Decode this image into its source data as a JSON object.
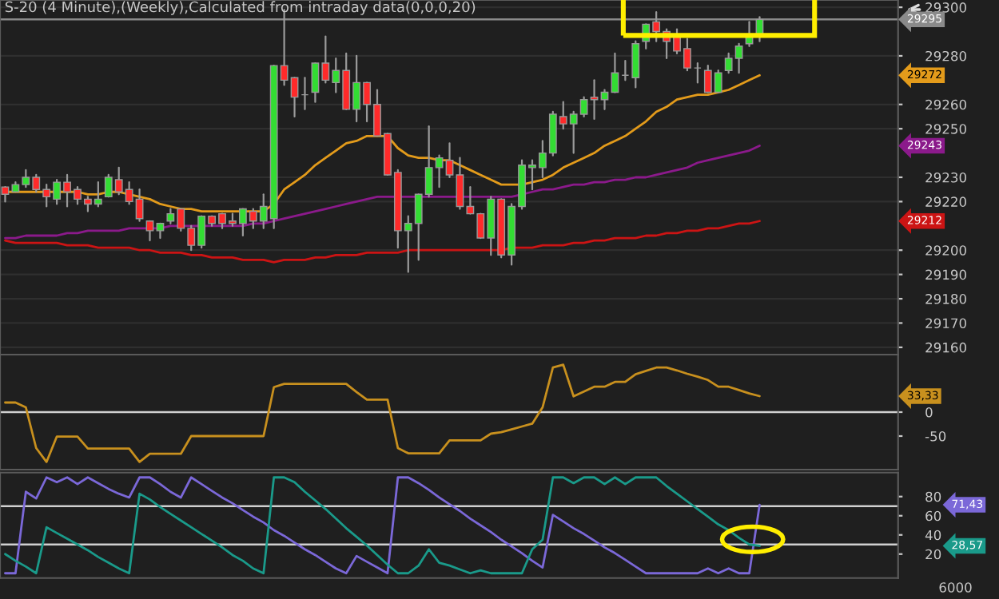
{
  "chart_data": [
    {
      "type": "candlestick",
      "title": "S-20 (4 Minute),(Weekly),Calculated from intraday data(0,0,0,20)",
      "categories": [
        null,
        null,
        null,
        null,
        null,
        null,
        null,
        null,
        null,
        null,
        null,
        null,
        null,
        null,
        null,
        null,
        null,
        null,
        null,
        null,
        null,
        null,
        null,
        null,
        null,
        null,
        null,
        null,
        null,
        null,
        null,
        null,
        null,
        null,
        null,
        null,
        null,
        null,
        null,
        null,
        null,
        null,
        null,
        null,
        null,
        null,
        null,
        null,
        null,
        null,
        null,
        null,
        null,
        null,
        null,
        null,
        null,
        null,
        null,
        null,
        null,
        null,
        null,
        null,
        null,
        null,
        null,
        null,
        null,
        null,
        null,
        null,
        null,
        null
      ],
      "ohlc": [
        [
          29226,
          29226,
          29220,
          29223
        ],
        [
          29224,
          29228,
          29224,
          29227
        ],
        [
          29227,
          29233,
          29226,
          29230
        ],
        [
          29230,
          29231,
          29224,
          29225
        ],
        [
          29225,
          29227,
          29218,
          29222
        ],
        [
          29221,
          29229,
          29219,
          29228
        ],
        [
          29228,
          29231,
          29218,
          29224
        ],
        [
          29225,
          29226,
          29219,
          29221
        ],
        [
          29221,
          29222,
          29216,
          29219
        ],
        [
          29219,
          29228,
          29218,
          29221
        ],
        [
          29222,
          29231,
          29222,
          29230
        ],
        [
          29229,
          29234,
          29223,
          29224
        ],
        [
          29225,
          29228,
          29219,
          29220
        ],
        [
          29221,
          29225,
          29212,
          29213
        ],
        [
          29212,
          29212,
          29204,
          29208
        ],
        [
          29208,
          29211,
          29205,
          29211
        ],
        [
          29212,
          29217,
          29211,
          29215
        ],
        [
          29217,
          29217,
          29208,
          29209
        ],
        [
          29209,
          29210,
          29200,
          29202
        ],
        [
          29202,
          29214,
          29201,
          29214
        ],
        [
          29214,
          29214,
          29210,
          29211
        ],
        [
          29215,
          29215,
          29209,
          29211
        ],
        [
          29212,
          29215,
          29210,
          29211
        ],
        [
          29211,
          29217,
          29206,
          29217
        ],
        [
          29216,
          29217,
          29209,
          29212
        ],
        [
          29212,
          29223,
          29209,
          29218
        ],
        [
          29213,
          29276,
          29209,
          29276
        ],
        [
          29276,
          29299,
          29268,
          29270
        ],
        [
          29271,
          29271,
          29255,
          29263
        ],
        [
          29264,
          29271,
          29258,
          29264
        ],
        [
          29265,
          29277,
          29261,
          29277
        ],
        [
          29277,
          29288,
          29269,
          29270
        ],
        [
          29269,
          29279,
          29265,
          29274
        ],
        [
          29274,
          29281,
          29258,
          29258
        ],
        [
          29258,
          29280,
          29253,
          29269
        ],
        [
          29269,
          29269,
          29253,
          29260
        ],
        [
          29260,
          29266,
          29247,
          29247
        ],
        [
          29248,
          29248,
          29231,
          29231
        ],
        [
          29232,
          29233,
          29201,
          29208
        ],
        [
          29208,
          29214,
          29191,
          29211
        ],
        [
          29211,
          29223,
          29196,
          29223
        ],
        [
          29223,
          29251,
          29222,
          29234
        ],
        [
          29234,
          29239,
          29226,
          29238
        ],
        [
          29237,
          29244,
          29230,
          29231
        ],
        [
          29231,
          29238,
          29217,
          29218
        ],
        [
          29218,
          29226,
          29215,
          29215
        ],
        [
          29215,
          29215,
          29205,
          29205
        ],
        [
          29205,
          29222,
          29198,
          29221
        ],
        [
          29221,
          29221,
          29197,
          29198
        ],
        [
          29198,
          29219,
          29194,
          29218
        ],
        [
          29218,
          29237,
          29217,
          29235
        ],
        [
          29234,
          29237,
          29225,
          29235
        ],
        [
          29234,
          29245,
          29230,
          29240
        ],
        [
          29240,
          29257,
          29239,
          29256
        ],
        [
          29255,
          29261,
          29250,
          29252
        ],
        [
          29252,
          29257,
          29240,
          29256
        ],
        [
          29256,
          29263,
          29255,
          29262
        ],
        [
          29263,
          29270,
          29254,
          29262
        ],
        [
          29262,
          29266,
          29258,
          29265
        ],
        [
          29265,
          29281,
          29265,
          29273
        ],
        [
          29272,
          29278,
          29270,
          29272
        ],
        [
          29271,
          29286,
          29267,
          29285
        ],
        [
          29286,
          29293,
          29283,
          29293
        ],
        [
          29294,
          29298,
          29286,
          29290
        ],
        [
          29290,
          29291,
          29279,
          29286
        ],
        [
          29288,
          29291,
          29281,
          29282
        ],
        [
          29283,
          29287,
          29274,
          29275
        ],
        [
          29275,
          29277,
          29269,
          29275
        ],
        [
          29274,
          29276,
          29265,
          29265
        ],
        [
          29265,
          29274,
          29265,
          29273
        ],
        [
          29274,
          29281,
          29273,
          29279
        ],
        [
          29279,
          29285,
          29273,
          29284
        ],
        [
          29285,
          29294,
          29284,
          29288
        ],
        [
          29288,
          29296,
          29286,
          29295
        ]
      ],
      "series": [
        {
          "type": "line",
          "color": "#e39b1b",
          "values": [
            29224,
            29224,
            29224,
            29224,
            29224,
            29224,
            29224,
            29224,
            29223,
            29223,
            29224,
            29224,
            29223,
            29222,
            29221,
            29219,
            29218,
            29217,
            29217,
            29216,
            29216,
            29216,
            29216,
            29216,
            29216,
            29216,
            29219,
            29225,
            29228,
            29231,
            29235,
            29238,
            29241,
            29244,
            29245,
            29247,
            29247,
            29247,
            29242,
            29239,
            29238,
            29238,
            29237,
            29237,
            29235,
            29233,
            29231,
            29229,
            29227,
            29227,
            29227,
            29228,
            29229,
            29231,
            29234,
            29236,
            29238,
            29240,
            29243,
            29245,
            29247,
            29250,
            29253,
            29257,
            29259,
            29262,
            29263,
            29264,
            29264,
            29265,
            29266,
            29268,
            29270,
            29272
          ],
          "value_labels": [
            null,
            null,
            null,
            null,
            null,
            null,
            null,
            null,
            null,
            null,
            null,
            null,
            null,
            null,
            null,
            null,
            null,
            null,
            null,
            null,
            null,
            null,
            null,
            null,
            null,
            null,
            null,
            null,
            null,
            null,
            null,
            null,
            null,
            null,
            null,
            null,
            null,
            null,
            null,
            null,
            null,
            null,
            null,
            null,
            null,
            null,
            null,
            null,
            null,
            null,
            null,
            null,
            null,
            null,
            null,
            null,
            null,
            null,
            null,
            null,
            null,
            null,
            null,
            null,
            null,
            null,
            null,
            null,
            null,
            null,
            null,
            null,
            null,
            null
          ]
        },
        {
          "type": "line",
          "color": "#8b1a8b",
          "values": [
            29205,
            29205,
            29206,
            29206,
            29206,
            29206,
            29207,
            29207,
            29208,
            29208,
            29208,
            29208,
            29209,
            29209,
            29209,
            29209,
            29210,
            29210,
            29210,
            29210,
            29210,
            29210,
            29210,
            29210,
            29211,
            29211,
            29212,
            29213,
            29214,
            29215,
            29216,
            29217,
            29218,
            29219,
            29220,
            29221,
            29222,
            29222,
            29222,
            29222,
            29222,
            29222,
            29222,
            29222,
            29222,
            29222,
            29222,
            29222,
            29222,
            29222,
            29223,
            29224,
            29225,
            29225,
            29226,
            29227,
            29227,
            29228,
            29228,
            29229,
            29229,
            29230,
            29230,
            29231,
            29232,
            29233,
            29234,
            29236,
            29237,
            29238,
            29239,
            29240,
            29241,
            29243
          ],
          "value_labels": [
            null,
            null,
            null,
            null,
            null,
            null,
            null,
            null,
            null,
            null,
            null,
            null,
            null,
            null,
            null,
            null,
            null,
            null,
            null,
            null,
            null,
            null,
            null,
            null,
            null,
            null,
            null,
            null,
            null,
            null,
            null,
            null,
            null,
            null,
            null,
            null,
            null,
            null,
            null,
            null,
            null,
            null,
            null,
            null,
            null,
            null,
            null,
            null,
            null,
            null,
            null,
            null,
            null,
            null,
            null,
            null,
            null,
            null,
            null,
            null,
            null,
            null,
            null,
            null,
            null,
            null,
            null,
            null,
            null,
            null,
            null,
            null,
            null,
            null
          ]
        },
        {
          "type": "line",
          "color": "#cc1414",
          "values": [
            29204,
            29203,
            29203,
            29203,
            29203,
            29203,
            29202,
            29202,
            29202,
            29201,
            29201,
            29201,
            29201,
            29200,
            29200,
            29199,
            29199,
            29199,
            29198,
            29198,
            29197,
            29197,
            29197,
            29196,
            29196,
            29196,
            29195,
            29196,
            29196,
            29196,
            29197,
            29197,
            29198,
            29198,
            29198,
            29199,
            29199,
            29199,
            29199,
            29200,
            29200,
            29200,
            29200,
            29200,
            29200,
            29200,
            29200,
            29200,
            29200,
            29201,
            29201,
            29201,
            29202,
            29202,
            29202,
            29203,
            29203,
            29204,
            29204,
            29205,
            29205,
            29205,
            29206,
            29206,
            29207,
            29207,
            29208,
            29208,
            29209,
            29209,
            29210,
            29211,
            29211,
            29212
          ],
          "value_labels": [
            null,
            null,
            null,
            null,
            null,
            null,
            null,
            null,
            null,
            null,
            null,
            null,
            null,
            null,
            null,
            null,
            null,
            null,
            null,
            null,
            null,
            null,
            null,
            null,
            null,
            null,
            null,
            null,
            null,
            null,
            null,
            null,
            null,
            null,
            null,
            null,
            null,
            null,
            null,
            null,
            null,
            null,
            null,
            null,
            null,
            null,
            null,
            null,
            null,
            null,
            null,
            null,
            null,
            null,
            null,
            null,
            null,
            null,
            null,
            null,
            null,
            null,
            null,
            null,
            null,
            null,
            null,
            null,
            null,
            null,
            null,
            null,
            null,
            null
          ]
        }
      ],
      "ylim": [
        29157,
        29303
      ],
      "yticks": [
        29160,
        29170,
        29180,
        29190,
        29200,
        29220,
        29230,
        29250,
        29260,
        29280,
        29300
      ],
      "ref_lines": [
        {
          "axis": "y",
          "value": 29295,
          "label": "29295",
          "color": "#8a8a8a"
        }
      ],
      "annotations": [
        "29272",
        "29243",
        "29212"
      ],
      "grid": "y",
      "tick_labels": "y"
    },
    {
      "type": "line",
      "categories": [
        null,
        null,
        null,
        null,
        null,
        null,
        null,
        null,
        null,
        null,
        null,
        null,
        null,
        null,
        null,
        null,
        null,
        null,
        null,
        null,
        null,
        null,
        null,
        null,
        null,
        null,
        null,
        null,
        null,
        null,
        null,
        null,
        null,
        null,
        null,
        null,
        null,
        null,
        null,
        null,
        null,
        null,
        null,
        null,
        null,
        null,
        null,
        null,
        null,
        null,
        null,
        null,
        null,
        null,
        null,
        null,
        null,
        null,
        null,
        null,
        null,
        null,
        null,
        null,
        null,
        null,
        null,
        null,
        null,
        null,
        null,
        null,
        null,
        null
      ],
      "series": [
        {
          "color": "#c8901e",
          "values": [
            20,
            20,
            10,
            -75,
            -104,
            -51,
            -51,
            -51,
            -76,
            -76,
            -76,
            -76,
            -76,
            -104,
            -87,
            -87,
            -87,
            -87,
            -50,
            -50,
            -50,
            -50,
            -50,
            -50,
            -50,
            -50,
            52,
            59,
            59,
            59,
            59,
            59,
            59,
            59,
            42,
            26,
            26,
            26,
            -75,
            -86,
            -86,
            -86,
            -86,
            -59,
            -59,
            -59,
            -59,
            -45,
            -42,
            -36,
            -30,
            -24,
            10,
            93,
            99,
            33,
            43,
            53,
            53,
            63,
            63,
            79,
            86,
            93,
            93,
            87,
            80,
            74,
            67,
            53,
            53,
            46,
            39,
            33.33
          ],
          "value_labels": [
            null,
            null,
            null,
            null,
            null,
            null,
            null,
            null,
            null,
            null,
            null,
            null,
            null,
            null,
            null,
            null,
            null,
            null,
            null,
            null,
            null,
            null,
            null,
            null,
            null,
            null,
            null,
            null,
            null,
            null,
            null,
            null,
            null,
            null,
            null,
            null,
            null,
            null,
            null,
            null,
            null,
            null,
            null,
            null,
            null,
            null,
            null,
            null,
            null,
            null,
            null,
            null,
            null,
            null,
            null,
            null,
            null,
            null,
            null,
            null,
            null,
            null,
            null,
            null,
            null,
            null,
            null,
            null,
            null,
            null,
            null,
            null,
            null,
            null
          ]
        }
      ],
      "ylim": [
        -120,
        120
      ],
      "yticks": [
        -50,
        0
      ],
      "annotations": [
        "33,33"
      ],
      "ref_lines": [
        {
          "axis": "y",
          "value": 0,
          "color": "#d0d0d0"
        }
      ],
      "tick_labels": "y"
    },
    {
      "type": "line",
      "categories": [
        null,
        null,
        null,
        null,
        null,
        null,
        null,
        null,
        null,
        null,
        null,
        null,
        null,
        null,
        null,
        null,
        null,
        null,
        null,
        null,
        null,
        null,
        null,
        null,
        null,
        null,
        null,
        null,
        null,
        null,
        null,
        null,
        null,
        null,
        null,
        null,
        null,
        null,
        null,
        null,
        null,
        null,
        null,
        null,
        null,
        null,
        null,
        null,
        null,
        null,
        null,
        null,
        null,
        null,
        null,
        null,
        null,
        null,
        null,
        null,
        null,
        null,
        null,
        null,
        null,
        null,
        null,
        null,
        null,
        null,
        null,
        null,
        null,
        null
      ],
      "series": [
        {
          "color": "#7b68d8",
          "values": [
            0,
            0,
            85,
            78,
            100,
            95,
            100,
            93,
            100,
            94,
            88,
            83,
            79,
            100,
            100,
            93,
            85,
            79,
            100,
            93,
            86,
            79,
            73,
            66,
            59,
            53,
            45,
            39,
            32,
            25,
            19,
            12,
            5,
            0,
            18,
            12,
            6,
            0,
            100,
            100,
            94,
            87,
            79,
            72,
            65,
            57,
            50,
            43,
            35,
            28,
            21,
            13,
            6,
            61,
            54,
            47,
            41,
            34,
            27,
            21,
            14,
            7,
            0,
            0,
            0,
            0,
            0,
            0,
            5,
            0,
            5,
            0,
            0,
            71.43
          ],
          "value_labels": [
            null,
            null,
            null,
            null,
            null,
            null,
            null,
            null,
            null,
            null,
            null,
            null,
            null,
            null,
            null,
            null,
            null,
            null,
            null,
            null,
            null,
            null,
            null,
            null,
            null,
            null,
            null,
            null,
            null,
            null,
            null,
            null,
            null,
            null,
            null,
            null,
            null,
            null,
            null,
            null,
            null,
            null,
            null,
            null,
            null,
            null,
            null,
            null,
            null,
            null,
            null,
            null,
            null,
            null,
            null,
            null,
            null,
            null,
            null,
            null,
            null,
            null,
            null,
            null,
            null,
            null,
            null,
            null,
            null,
            null,
            null,
            null,
            null,
            null
          ]
        },
        {
          "color": "#1a9a8a",
          "values": [
            20,
            13,
            7,
            0,
            48,
            42,
            36,
            30,
            24,
            17,
            11,
            5,
            0,
            83,
            77,
            69,
            62,
            55,
            48,
            41,
            34,
            27,
            19,
            13,
            5,
            0,
            100,
            100,
            95,
            85,
            76,
            67,
            57,
            47,
            38,
            29,
            19,
            9,
            0,
            0,
            8,
            25,
            11,
            8,
            4,
            0,
            3,
            0,
            0,
            0,
            0,
            25,
            35,
            100,
            100,
            94,
            100,
            100,
            93,
            100,
            93,
            100,
            100,
            100,
            91,
            83,
            75,
            67,
            59,
            51,
            45,
            37,
            30,
            28.57
          ],
          "value_labels": [
            null,
            null,
            null,
            null,
            null,
            null,
            null,
            null,
            null,
            null,
            null,
            null,
            null,
            null,
            null,
            null,
            null,
            null,
            null,
            null,
            null,
            null,
            null,
            null,
            null,
            null,
            null,
            null,
            null,
            null,
            null,
            null,
            null,
            null,
            null,
            null,
            null,
            null,
            null,
            null,
            null,
            null,
            null,
            null,
            null,
            null,
            null,
            null,
            null,
            null,
            null,
            null,
            null,
            null,
            null,
            null,
            null,
            null,
            null,
            null,
            null,
            null,
            null,
            null,
            null,
            null,
            null,
            null,
            null,
            null,
            null,
            null,
            null,
            null
          ]
        }
      ],
      "ylim": [
        -5,
        105
      ],
      "yticks": [
        20,
        40,
        60,
        80
      ],
      "ref_lines": [
        {
          "axis": "y",
          "value": 70,
          "color": "#d0d0d0"
        },
        {
          "axis": "y",
          "value": 30,
          "color": "#d0d0d0"
        }
      ],
      "annotations": [
        "71,43",
        "28,57",
        "6000"
      ],
      "tick_labels": "y"
    }
  ]
}
